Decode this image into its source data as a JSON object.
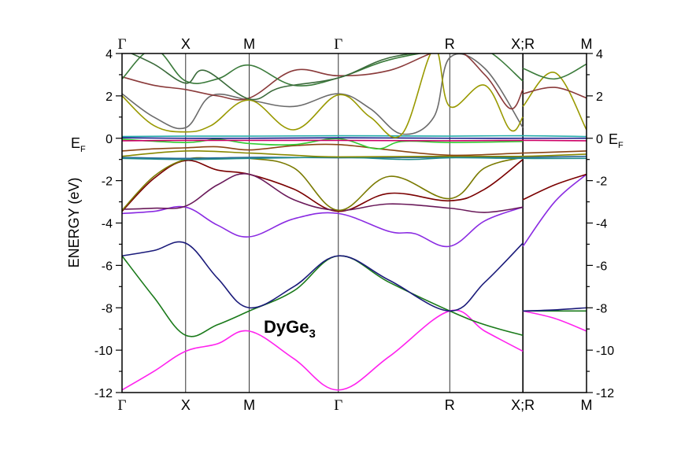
{
  "chart_data": {
    "type": "line",
    "title": "",
    "ylabel": "ENERGY (eV)",
    "ylim": [
      -12,
      4
    ],
    "yticks": [
      -12,
      -10,
      -8,
      -6,
      -4,
      -2,
      0,
      2,
      4
    ],
    "fermi_label": "E",
    "fermi_sub": "F",
    "annotation_main": "DyGe",
    "annotation_sub": "3",
    "kpath_labels": [
      "Γ",
      "X",
      "M",
      "Γ",
      "R",
      "X;R",
      "M"
    ],
    "kpath_positions": [
      0,
      1,
      2,
      3.4,
      5.15,
      6.3,
      7.3
    ],
    "x_range": [
      0,
      7.3
    ],
    "grid": false,
    "legend": "none",
    "series": [
      {
        "color": "#ff22ee",
        "points": [
          [
            0,
            -11.88
          ],
          [
            0.5,
            -11.0
          ],
          [
            1,
            -10.05
          ],
          [
            1.5,
            -9.7
          ],
          [
            2,
            -9.1
          ],
          [
            2.7,
            -10.4
          ],
          [
            3.4,
            -11.88
          ],
          [
            4.2,
            -10.3
          ],
          [
            5.15,
            -8.15
          ],
          [
            5.7,
            -9.1
          ],
          [
            6.3,
            -10.05
          ]
        ]
      },
      {
        "color": "#ff22ee",
        "points": [
          [
            6.3,
            -8.15
          ],
          [
            6.8,
            -8.5
          ],
          [
            7.3,
            -9.1
          ]
        ]
      },
      {
        "color": "#1a7a1a",
        "points": [
          [
            0,
            -5.55
          ],
          [
            0.5,
            -7.5
          ],
          [
            1,
            -9.3
          ],
          [
            1.5,
            -8.8
          ],
          [
            2,
            -8.15
          ],
          [
            2.7,
            -7.2
          ],
          [
            3.4,
            -5.55
          ],
          [
            4.2,
            -6.8
          ],
          [
            5.15,
            -8.15
          ],
          [
            5.7,
            -8.8
          ],
          [
            6.3,
            -9.3
          ]
        ]
      },
      {
        "color": "#1a7a1a",
        "points": [
          [
            6.3,
            -8.15
          ],
          [
            7.3,
            -8.15
          ]
        ]
      },
      {
        "color": "#1a1a7a",
        "points": [
          [
            0,
            -5.55
          ],
          [
            0.5,
            -5.3
          ],
          [
            1,
            -4.95
          ],
          [
            1.5,
            -6.6
          ],
          [
            2,
            -8.0
          ],
          [
            2.7,
            -7.0
          ],
          [
            3.4,
            -5.55
          ],
          [
            4.2,
            -6.7
          ],
          [
            5.15,
            -8.15
          ],
          [
            5.7,
            -6.8
          ],
          [
            6.3,
            -4.95
          ]
        ]
      },
      {
        "color": "#1a1a7a",
        "points": [
          [
            6.3,
            -8.15
          ],
          [
            6.8,
            -8.1
          ],
          [
            7.3,
            -8.0
          ]
        ]
      },
      {
        "color": "#8a2be2",
        "points": [
          [
            0,
            -3.55
          ],
          [
            0.5,
            -3.45
          ],
          [
            1,
            -3.25
          ],
          [
            1.5,
            -4.1
          ],
          [
            2,
            -4.65
          ],
          [
            2.7,
            -3.8
          ],
          [
            3.4,
            -3.55
          ],
          [
            4.2,
            -4.4
          ],
          [
            4.6,
            -4.5
          ],
          [
            5.15,
            -5.1
          ],
          [
            5.7,
            -3.9
          ],
          [
            6.3,
            -3.25
          ]
        ]
      },
      {
        "color": "#8a2be2",
        "points": [
          [
            6.3,
            -5.1
          ],
          [
            6.8,
            -3.0
          ],
          [
            7.3,
            -1.7
          ]
        ]
      },
      {
        "color": "#7a0000",
        "points": [
          [
            0,
            -3.45
          ],
          [
            0.5,
            -1.9
          ],
          [
            1,
            -1.05
          ],
          [
            1.5,
            -1.5
          ],
          [
            2,
            -1.7
          ],
          [
            2.7,
            -2.4
          ],
          [
            3.4,
            -3.45
          ],
          [
            4.2,
            -2.6
          ],
          [
            5.15,
            -2.95
          ],
          [
            5.7,
            -2.4
          ],
          [
            6.3,
            -1.0
          ]
        ]
      },
      {
        "color": "#7a0000",
        "points": [
          [
            6.3,
            -2.9
          ],
          [
            6.8,
            -2.2
          ],
          [
            7.3,
            -1.7
          ]
        ]
      },
      {
        "color": "#6a1a5a",
        "points": [
          [
            0,
            -3.35
          ],
          [
            0.5,
            -3.3
          ],
          [
            1,
            -3.2
          ],
          [
            1.5,
            -2.2
          ],
          [
            2,
            -1.7
          ],
          [
            2.7,
            -2.9
          ],
          [
            3.4,
            -3.4
          ],
          [
            4.2,
            -3.1
          ],
          [
            5.15,
            -3.3
          ],
          [
            5.7,
            -3.5
          ],
          [
            6.3,
            -3.25
          ]
        ]
      },
      {
        "color": "#7a7a00",
        "points": [
          [
            0,
            -3.4
          ],
          [
            0.5,
            -1.8
          ],
          [
            1,
            -1.0
          ],
          [
            1.5,
            -0.95
          ],
          [
            2,
            -0.95
          ],
          [
            2.7,
            -1.4
          ],
          [
            3.4,
            -3.4
          ],
          [
            4.2,
            -1.8
          ],
          [
            5.15,
            -2.85
          ],
          [
            5.7,
            -1.4
          ],
          [
            6.3,
            -0.9
          ]
        ]
      },
      {
        "color": "#2a6a9a",
        "points": [
          [
            0,
            -0.9
          ],
          [
            1,
            -0.95
          ],
          [
            2,
            -0.9
          ],
          [
            3.4,
            -0.92
          ],
          [
            5.15,
            -0.9
          ],
          [
            6.3,
            -0.9
          ],
          [
            7.3,
            -0.85
          ]
        ]
      },
      {
        "color": "#1f8a8a",
        "points": [
          [
            0,
            -0.95
          ],
          [
            1,
            -1.0
          ],
          [
            2,
            -0.95
          ],
          [
            3.4,
            -0.9
          ],
          [
            4.5,
            -1.0
          ],
          [
            5.15,
            -0.92
          ],
          [
            6.3,
            -0.95
          ],
          [
            7.3,
            -0.95
          ]
        ]
      },
      {
        "color": "#888800",
        "points": [
          [
            0,
            -0.85
          ],
          [
            1,
            -0.6
          ],
          [
            2,
            -0.7
          ],
          [
            2.7,
            -0.8
          ],
          [
            3.4,
            -0.88
          ],
          [
            5.15,
            -0.85
          ],
          [
            6.3,
            -0.85
          ],
          [
            7.3,
            -0.75
          ]
        ]
      },
      {
        "color": "#8b4513",
        "points": [
          [
            0,
            -0.6
          ],
          [
            0.5,
            -0.5
          ],
          [
            1,
            -0.45
          ],
          [
            1.5,
            -0.4
          ],
          [
            2,
            -0.55
          ],
          [
            2.7,
            -0.35
          ],
          [
            3.4,
            -0.3
          ],
          [
            4.2,
            -0.55
          ],
          [
            5.15,
            -0.8
          ],
          [
            6.3,
            -0.7
          ],
          [
            7.3,
            -0.6
          ]
        ]
      },
      {
        "color": "#33cc33",
        "points": [
          [
            0,
            -0.05
          ],
          [
            1,
            -0.2
          ],
          [
            1.5,
            -0.05
          ],
          [
            2,
            -0.25
          ],
          [
            2.7,
            -0.3
          ],
          [
            3.4,
            -0.02
          ],
          [
            4.0,
            -0.5
          ],
          [
            4.4,
            -0.15
          ],
          [
            5.15,
            -0.2
          ],
          [
            6.3,
            -0.15
          ]
        ]
      },
      {
        "color": "#cc0066",
        "points": [
          [
            0,
            -0.12
          ],
          [
            1,
            -0.1
          ],
          [
            2,
            -0.1
          ],
          [
            3.4,
            -0.1
          ],
          [
            5.15,
            -0.12
          ],
          [
            6.3,
            -0.1
          ],
          [
            7.3,
            -0.12
          ]
        ]
      },
      {
        "color": "#22aaaa",
        "points": [
          [
            0,
            0.08
          ],
          [
            1,
            0.1
          ],
          [
            2,
            0.1
          ],
          [
            3.4,
            0.12
          ],
          [
            5.15,
            0.1
          ],
          [
            6.3,
            0.12
          ],
          [
            7.3,
            0.08
          ]
        ]
      },
      {
        "color": "#1a1a8a",
        "points": [
          [
            0,
            0.02
          ],
          [
            1,
            0.0
          ],
          [
            2,
            0.0
          ],
          [
            3.4,
            0.02
          ],
          [
            5.15,
            0.0
          ],
          [
            6.3,
            0.0
          ],
          [
            7.3,
            0.0
          ]
        ]
      },
      {
        "color": "#6b6b6b",
        "points": [
          [
            0,
            2.1
          ],
          [
            0.5,
            1.0
          ],
          [
            1,
            0.5
          ],
          [
            1.4,
            2.0
          ],
          [
            2,
            1.8
          ],
          [
            2.7,
            1.5
          ],
          [
            3.4,
            2.1
          ],
          [
            3.9,
            1.4
          ],
          [
            4.4,
            0.2
          ],
          [
            4.9,
            1.0
          ],
          [
            5.15,
            3.8
          ],
          [
            5.7,
            3.3
          ],
          [
            6.3,
            0.5
          ]
        ]
      },
      {
        "color": "#999900",
        "points": [
          [
            0,
            2.0
          ],
          [
            0.5,
            0.6
          ],
          [
            1,
            0.3
          ],
          [
            1.4,
            0.6
          ],
          [
            2,
            1.8
          ],
          [
            2.7,
            0.4
          ],
          [
            3.4,
            2.05
          ],
          [
            3.9,
            1.0
          ],
          [
            4.4,
            0.2
          ],
          [
            4.9,
            4.2
          ],
          [
            5.15,
            1.5
          ],
          [
            5.7,
            2.5
          ],
          [
            6.1,
            0.4
          ],
          [
            6.3,
            1.0
          ]
        ]
      },
      {
        "color": "#999900",
        "points": [
          [
            6.3,
            1.5
          ],
          [
            6.8,
            3.1
          ],
          [
            7.3,
            0.4
          ]
        ]
      },
      {
        "color": "#8a3a3a",
        "points": [
          [
            0,
            2.9
          ],
          [
            0.5,
            2.5
          ],
          [
            1,
            2.3
          ],
          [
            1.5,
            2.0
          ],
          [
            2,
            1.9
          ],
          [
            2.7,
            3.2
          ],
          [
            3.4,
            2.95
          ],
          [
            4.2,
            3.2
          ],
          [
            5.15,
            4.2
          ],
          [
            5.7,
            3.0
          ],
          [
            6.1,
            1.4
          ],
          [
            6.3,
            2.3
          ]
        ]
      },
      {
        "color": "#8a3a3a",
        "points": [
          [
            6.3,
            2.1
          ],
          [
            6.8,
            2.4
          ],
          [
            7.3,
            1.9
          ]
        ]
      },
      {
        "color": "#3a7a3a",
        "points": [
          [
            0,
            2.8
          ],
          [
            0.5,
            4.2
          ],
          [
            1,
            2.7
          ],
          [
            1.5,
            2.8
          ],
          [
            2,
            3.45
          ],
          [
            2.7,
            2.5
          ],
          [
            3.4,
            2.85
          ],
          [
            4.2,
            3.7
          ],
          [
            5.15,
            4.2
          ],
          [
            5.7,
            4.2
          ],
          [
            6.3,
            2.7
          ]
        ]
      },
      {
        "color": "#3a7a3a",
        "points": [
          [
            6.3,
            3.3
          ],
          [
            6.8,
            2.8
          ],
          [
            7.3,
            3.5
          ]
        ]
      },
      {
        "color": "#3a6a3a",
        "points": [
          [
            0,
            4.2
          ],
          [
            0.5,
            3.5
          ],
          [
            1,
            2.6
          ],
          [
            1.3,
            3.2
          ],
          [
            2,
            1.85
          ],
          [
            2.5,
            2.4
          ],
          [
            3.4,
            2.85
          ],
          [
            4.2,
            3.8
          ],
          [
            5.15,
            4.2
          ]
        ]
      }
    ]
  }
}
